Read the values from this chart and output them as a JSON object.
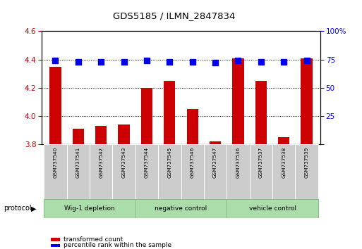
{
  "title": "GDS5185 / ILMN_2847834",
  "samples": [
    "GSM737540",
    "GSM737541",
    "GSM737542",
    "GSM737543",
    "GSM737544",
    "GSM737545",
    "GSM737546",
    "GSM737547",
    "GSM737536",
    "GSM737537",
    "GSM737538",
    "GSM737539"
  ],
  "red_values": [
    4.35,
    3.91,
    3.93,
    3.94,
    4.2,
    4.25,
    4.05,
    3.82,
    4.41,
    4.25,
    3.85,
    4.41
  ],
  "blue_values": [
    74,
    73,
    73,
    73,
    74,
    73,
    73,
    72,
    74,
    73,
    73,
    74
  ],
  "ylim_left": [
    3.8,
    4.6
  ],
  "ylim_right": [
    0,
    100
  ],
  "yticks_left": [
    3.8,
    4.0,
    4.2,
    4.4,
    4.6
  ],
  "yticks_right": [
    0,
    25,
    50,
    75,
    100
  ],
  "groups": [
    {
      "label": "Wig-1 depletion",
      "start": 0,
      "end": 3
    },
    {
      "label": "negative control",
      "start": 4,
      "end": 7
    },
    {
      "label": "vehicle control",
      "start": 8,
      "end": 11
    }
  ],
  "protocol_label": "protocol",
  "red_color": "#cc0000",
  "blue_color": "#0000ee",
  "bar_width": 0.5,
  "bar_bottom": 3.8,
  "dot_size": 28,
  "legend_red": "transformed count",
  "legend_blue": "percentile rank within the sample",
  "tick_color_left": "#cc0000",
  "tick_color_right": "#0000ee",
  "plot_bg": "#ffffff",
  "sample_bg": "#cccccc",
  "group_color": "#aaddaa",
  "group_edge_color": "#88bb88"
}
